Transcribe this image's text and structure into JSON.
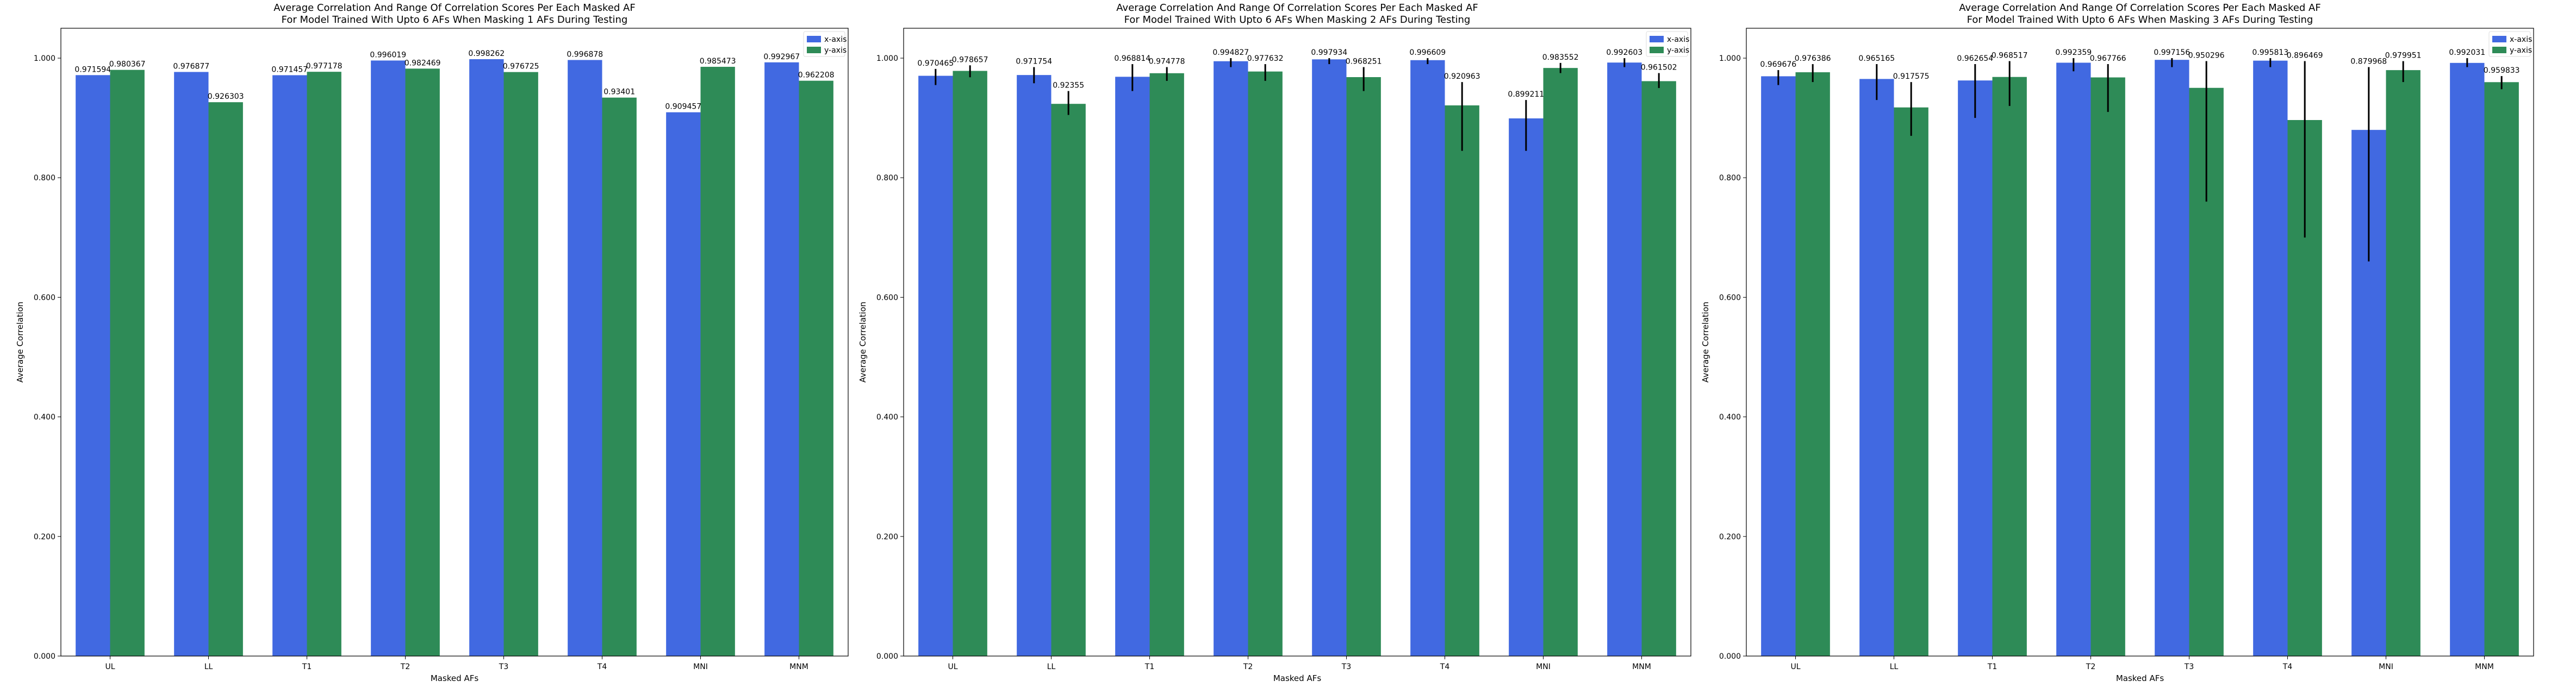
{
  "colors": {
    "x_axis": "#4169E1",
    "y_axis": "#2E8B57",
    "error": "#000000"
  },
  "chart_data": [
    {
      "type": "bar",
      "title": "Average Correlation And Range Of Correlation Scores Per Each Masked AF",
      "subtitle": "For Model Trained With Upto 6 AFs When Masking 1 AFs During Testing",
      "xlabel": "Masked AFs",
      "ylabel": "Average Correlation",
      "ylim": [
        0,
        1.05
      ],
      "yticks": [
        "0.000",
        "0.200",
        "0.400",
        "0.600",
        "0.800",
        "1.000"
      ],
      "legend_position": "top-right",
      "categories": [
        "UL",
        "LL",
        "T1",
        "T2",
        "T3",
        "T4",
        "MNI",
        "MNM"
      ],
      "series": [
        {
          "name": "x-axis",
          "values": [
            0.971594,
            0.976877,
            0.971457,
            0.996019,
            0.998262,
            0.996878,
            0.909457,
            0.992967
          ],
          "labels": [
            "0.971594",
            "0.976877",
            "0.971457",
            "0.996019",
            "0.998262",
            "0.996878",
            "0.909457",
            "0.992967"
          ],
          "err_low": [
            0,
            0,
            0,
            0,
            0,
            0,
            0,
            0
          ],
          "err_high": [
            0,
            0,
            0,
            0,
            0,
            0,
            0,
            0
          ]
        },
        {
          "name": "y-axis",
          "values": [
            0.980367,
            0.926303,
            0.977178,
            0.982469,
            0.976725,
            0.93401,
            0.985473,
            0.962208
          ],
          "labels": [
            "0.980367",
            "0.926303",
            "0.977178",
            "0.982469",
            "0.976725",
            "0.93401",
            "0.985473",
            "0.962208"
          ],
          "err_low": [
            0,
            0,
            0,
            0,
            0,
            0,
            0,
            0
          ],
          "err_high": [
            0,
            0,
            0,
            0,
            0,
            0,
            0,
            0
          ]
        }
      ]
    },
    {
      "type": "bar",
      "title": "Average Correlation And Range Of Correlation Scores Per Each Masked AF",
      "subtitle": "For Model Trained With Upto 6 AFs When Masking 2 AFs During Testing",
      "xlabel": "Masked AFs",
      "ylabel": "Average Correlation",
      "ylim": [
        0,
        1.05
      ],
      "yticks": [
        "0.000",
        "0.200",
        "0.400",
        "0.600",
        "0.800",
        "1.000"
      ],
      "legend_position": "top-right",
      "categories": [
        "UL",
        "LL",
        "T1",
        "T2",
        "T3",
        "T4",
        "MNI",
        "MNM"
      ],
      "series": [
        {
          "name": "x-axis",
          "values": [
            0.970465,
            0.971754,
            0.968814,
            0.994827,
            0.997934,
            0.996609,
            0.899211,
            0.992603
          ],
          "labels": [
            "0.970465",
            "0.971754",
            "0.968814",
            "0.994827",
            "0.997934",
            "0.996609",
            "0.899211",
            "0.992603"
          ],
          "err_low": [
            0.955,
            0.958,
            0.945,
            0.985,
            0.99,
            0.99,
            0.845,
            0.985
          ],
          "err_high": [
            0.982,
            0.985,
            0.99,
            1.0,
            1.0,
            1.0,
            0.93,
            1.0
          ]
        },
        {
          "name": "y-axis",
          "values": [
            0.978657,
            0.92355,
            0.974778,
            0.977632,
            0.968251,
            0.920963,
            0.983552,
            0.961502
          ],
          "labels": [
            "0.978657",
            "0.92355",
            "0.974778",
            "0.977632",
            "0.968251",
            "0.920963",
            "0.983552",
            "0.961502"
          ],
          "err_low": [
            0.968,
            0.905,
            0.962,
            0.962,
            0.945,
            0.845,
            0.975,
            0.95
          ],
          "err_high": [
            0.988,
            0.945,
            0.985,
            0.99,
            0.985,
            0.96,
            0.992,
            0.975
          ]
        }
      ]
    },
    {
      "type": "bar",
      "title": "Average Correlation And Range Of Correlation Scores Per Each Masked AF",
      "subtitle": "For Model Trained With Upto 6 AFs When Masking 3 AFs During Testing",
      "xlabel": "Masked AFs",
      "ylabel": "Average Correlation",
      "ylim": [
        0,
        1.05
      ],
      "yticks": [
        "0.000",
        "0.200",
        "0.400",
        "0.600",
        "0.800",
        "1.000"
      ],
      "legend_position": "top-right",
      "categories": [
        "UL",
        "LL",
        "T1",
        "T2",
        "T3",
        "T4",
        "MNI",
        "MNM"
      ],
      "series": [
        {
          "name": "x-axis",
          "values": [
            0.969676,
            0.965165,
            0.962654,
            0.992359,
            0.997156,
            0.995813,
            0.879968,
            0.992031
          ],
          "labels": [
            "0.969676",
            "0.965165",
            "0.962654",
            "0.992359",
            "0.997156",
            "0.995813",
            "0.879968",
            "0.992031"
          ],
          "err_low": [
            0.955,
            0.93,
            0.9,
            0.978,
            0.985,
            0.985,
            0.66,
            0.985
          ],
          "err_high": [
            0.98,
            0.99,
            0.99,
            1.0,
            1.0,
            1.0,
            0.985,
            1.0
          ]
        },
        {
          "name": "y-axis",
          "values": [
            0.976386,
            0.917575,
            0.968517,
            0.967766,
            0.950296,
            0.896469,
            0.979951,
            0.959833
          ],
          "labels": [
            "0.976386",
            "0.917575",
            "0.968517",
            "0.967766",
            "0.950296",
            "0.896469",
            "0.979951",
            "0.959833"
          ],
          "err_low": [
            0.96,
            0.87,
            0.92,
            0.91,
            0.76,
            0.7,
            0.96,
            0.948
          ],
          "err_high": [
            0.99,
            0.96,
            0.995,
            0.99,
            0.995,
            0.995,
            0.995,
            0.97
          ]
        }
      ]
    }
  ]
}
